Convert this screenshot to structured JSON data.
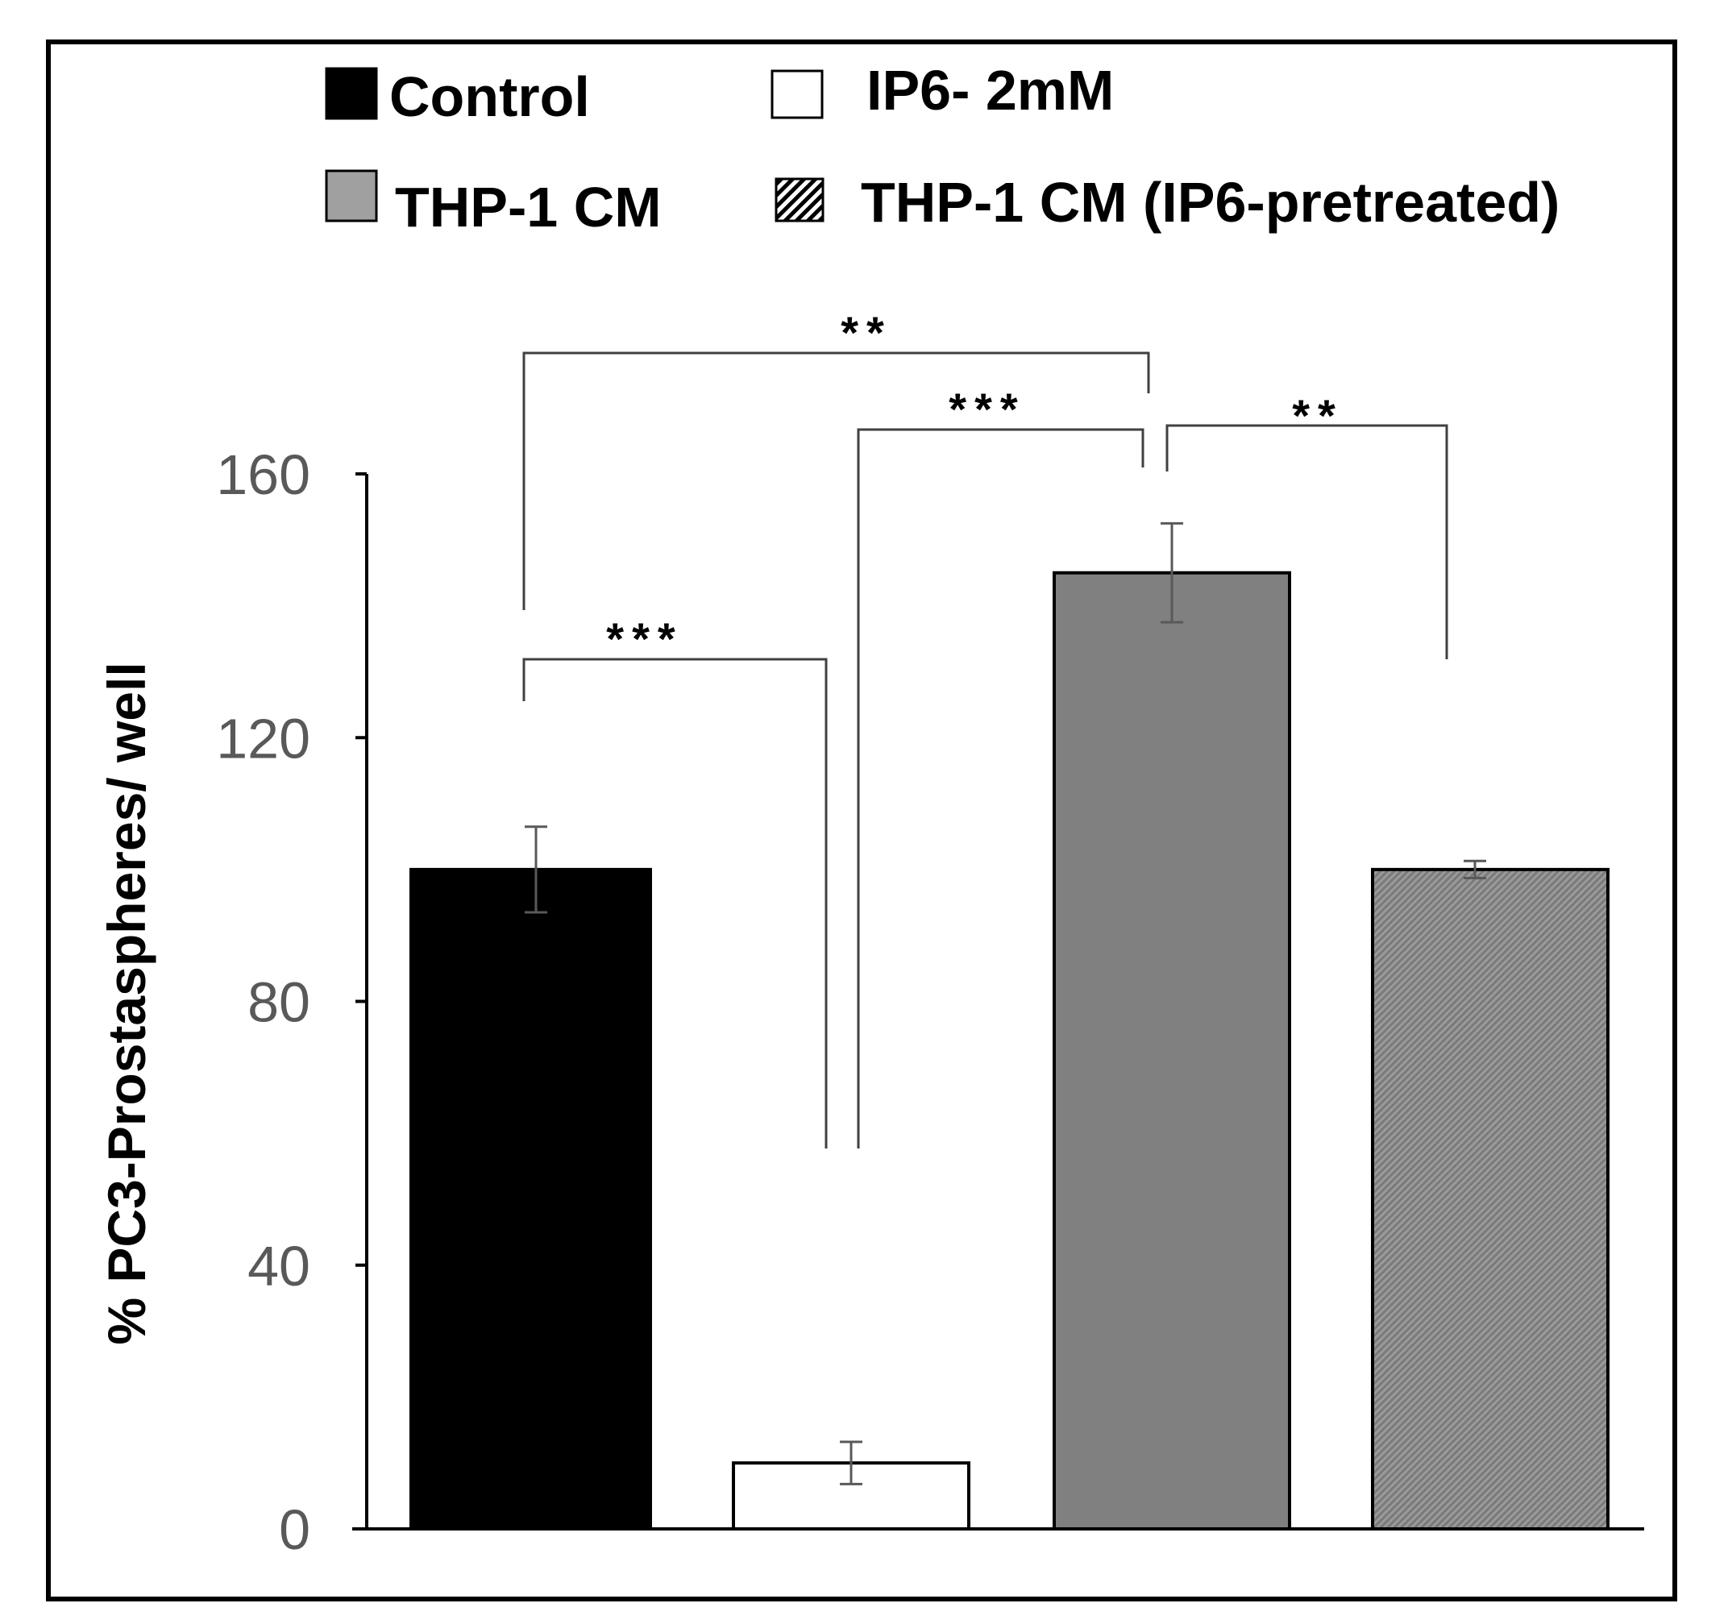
{
  "chart_data": {
    "type": "bar",
    "title": "",
    "xlabel": "",
    "ylabel": "% PC3-Prostaspheres/ well",
    "ylim": [
      0,
      160
    ],
    "yticks": [
      "0",
      "40",
      "80",
      "120",
      "160"
    ],
    "categories": [
      "Control",
      "IP6- 2mM",
      "THP-1 CM",
      "THP-1 CM (IP6-pretreated)"
    ],
    "values": [
      100,
      10,
      145,
      100
    ],
    "errors": [
      6.5,
      3.2,
      7.5,
      1.3
    ],
    "colors": {
      "control": "#000000",
      "ip6": "#ffffff",
      "thp1": "#808080",
      "thp1_ip6": "#8c8c8c",
      "axis": "#000000",
      "error_bar": "#595959",
      "bracket": "#404040"
    },
    "legend": [
      {
        "label": "Control",
        "swatch": "solid-black"
      },
      {
        "label": "IP6- 2mM",
        "swatch": "white"
      },
      {
        "label": "THP-1 CM",
        "swatch": "gray"
      },
      {
        "label": "THP-1 CM (IP6-pretreated)",
        "swatch": "hatched"
      }
    ],
    "legend_position": "top",
    "grid": false,
    "significance": [
      {
        "label": "***",
        "from": 0,
        "to": 1
      },
      {
        "label": "**",
        "from": 0,
        "to": 2
      },
      {
        "label": "***",
        "from": 1,
        "to": 2
      },
      {
        "label": "**",
        "from": 2,
        "to": 3
      }
    ]
  }
}
